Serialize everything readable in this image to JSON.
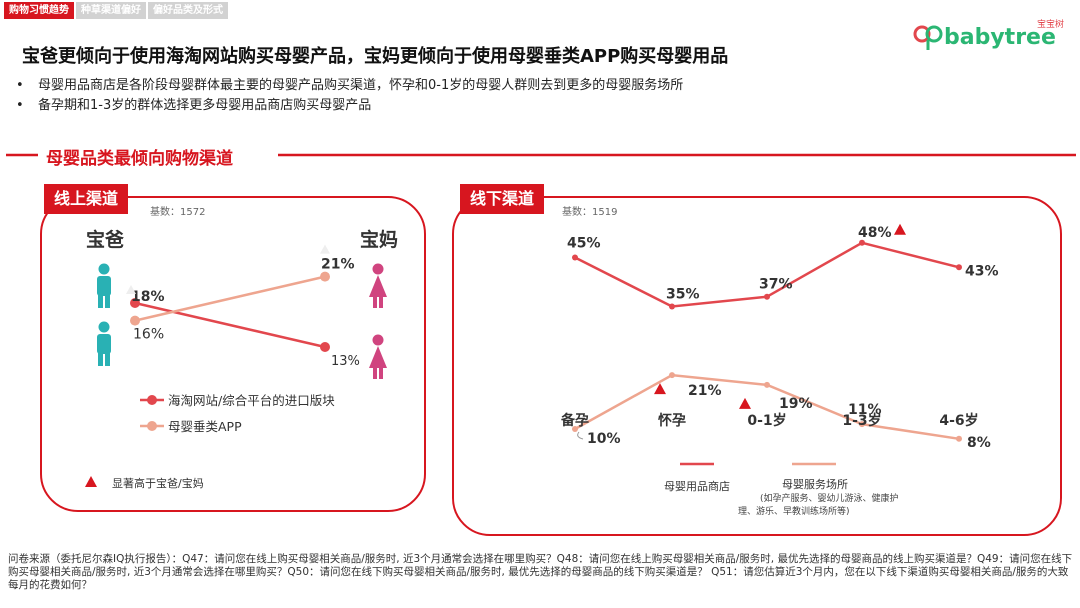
{
  "tabs": [
    {
      "label": "购物习惯趋势",
      "active": true
    },
    {
      "label": "种草渠道偏好",
      "active": false
    },
    {
      "label": "偏好品类及形式",
      "active": false
    }
  ],
  "logo": {
    "brand": "babytree",
    "cn": "宝宝树"
  },
  "headline": "宝爸更倾向于使用海淘网站购买母婴产品，宝妈更倾向于使用母婴垂类APP购买母婴用品",
  "bullets": [
    "母婴用品商店是各阶段母婴群体最主要的母婴产品购买渠道，怀孕和0-1岁的母婴人群则去到更多的母婴服务场所",
    "备孕期和1-3岁的群体选择更多母婴用品商店购买母婴产品"
  ],
  "bullet_symbol": "•",
  "section_title": "母婴品类最倾向购物渠道",
  "online": {
    "tag": "线上渠道",
    "base": "基数：1572",
    "dad_label": "宝爸",
    "mom_label": "宝妈",
    "legend_note": "显著高于宝爸/宝妈"
  },
  "offline": {
    "tag": "线下渠道",
    "base": "基数：1519"
  },
  "colors": {
    "red": "#d7161f",
    "line1": "#e2474d",
    "line2": "#eea58f",
    "teal": "#29b1b4",
    "pink": "#d0447f"
  },
  "chart_data": [
    {
      "type": "line",
      "title": "线上渠道",
      "categories": [
        "宝爸",
        "宝妈"
      ],
      "series": [
        {
          "name": "海淘网站/综合平台的进口版块",
          "values": [
            18,
            13
          ],
          "labels": [
            "18%",
            "13%"
          ]
        },
        {
          "name": "母婴垂类APP",
          "values": [
            16,
            21
          ],
          "labels": [
            "16%",
            "21%"
          ]
        }
      ],
      "significance_markers": [
        "宝爸 18% (海淘网站/综合平台的进口版块)",
        "宝妈 21% (母婴垂类APP)"
      ]
    },
    {
      "type": "line",
      "title": "线下渠道",
      "categories": [
        "备孕",
        "怀孕",
        "0-1岁",
        "1-3岁",
        "4-6岁"
      ],
      "series": [
        {
          "name": "母婴用品商店",
          "values": [
            45,
            35,
            37,
            48,
            43
          ],
          "labels": [
            "45%",
            "35%",
            "37%",
            "48%",
            "43%"
          ]
        },
        {
          "name": "母婴服务场所",
          "note": "(如孕产服务、婴幼儿游泳、健康护理、游乐、早教训练场所等)",
          "values": [
            10,
            21,
            19,
            11,
            8
          ],
          "labels": [
            "10%",
            "21%",
            "19%",
            "11%",
            "8%"
          ]
        }
      ],
      "significance_markers": [
        "1-3岁 48% (母婴用品商店)",
        "怀孕 21% (母婴服务场所)",
        "0-1岁 19% (母婴服务场所)"
      ]
    }
  ],
  "offline_legend": {
    "store": "母婴用品商店",
    "service": "母婴服务场所",
    "service_note_1": "(如孕产服务、婴幼儿游泳、健康护",
    "service_note_2": "理、游乐、早教训练场所等)"
  },
  "footnote": "问卷来源（委托尼尔森IQ执行报告）：Q47：请问您在线上购买母婴相关商品/服务时, 近3个月通常会选择在哪里购买？Q48：请问您在线上购买母婴相关商品/服务时, 最优先选择的母婴商品的线上购买渠道是？Q49：请问您在线下购买母婴相关商品/服务时, 近3个月通常会选择在哪里购买？Q50：请问您在线下购买母婴相关商品/服务时, 最优先选择的母婴商品的线下购买渠道是？ Q51：请您估算近3个月内，您在以下线下渠道购买母婴相关商品/服务的大致每月的花费如何？"
}
